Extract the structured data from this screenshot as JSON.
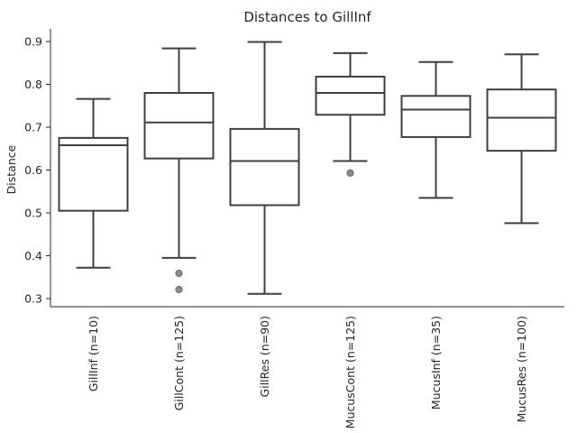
{
  "chart_data": {
    "type": "box",
    "title": "Distances to GillInf",
    "xlabel": "",
    "ylabel": "Distance",
    "ylim": [
      0.28,
      0.93
    ],
    "yticks": [
      0.3,
      0.4,
      0.5,
      0.6,
      0.7,
      0.8,
      0.9
    ],
    "grid": false,
    "series": [
      {
        "category": "GillInf (n=10)",
        "whisker_low": 0.372,
        "q1": 0.505,
        "median": 0.658,
        "q3": 0.675,
        "whisker_high": 0.766,
        "outliers": []
      },
      {
        "category": "GillCont (n=125)",
        "whisker_low": 0.395,
        "q1": 0.627,
        "median": 0.711,
        "q3": 0.78,
        "whisker_high": 0.884,
        "outliers": [
          0.359,
          0.321
        ]
      },
      {
        "category": "GillRes (n=90)",
        "whisker_low": 0.311,
        "q1": 0.518,
        "median": 0.621,
        "q3": 0.696,
        "whisker_high": 0.899,
        "outliers": []
      },
      {
        "category": "MucusCont (n=125)",
        "whisker_low": 0.621,
        "q1": 0.729,
        "median": 0.78,
        "q3": 0.818,
        "whisker_high": 0.873,
        "outliers": [
          0.593
        ]
      },
      {
        "category": "MucusInf (n=35)",
        "whisker_low": 0.535,
        "q1": 0.677,
        "median": 0.741,
        "q3": 0.773,
        "whisker_high": 0.852,
        "outliers": []
      },
      {
        "category": "MucusRes (n=100)",
        "whisker_low": 0.476,
        "q1": 0.645,
        "median": 0.722,
        "q3": 0.788,
        "whisker_high": 0.87,
        "outliers": []
      }
    ]
  }
}
